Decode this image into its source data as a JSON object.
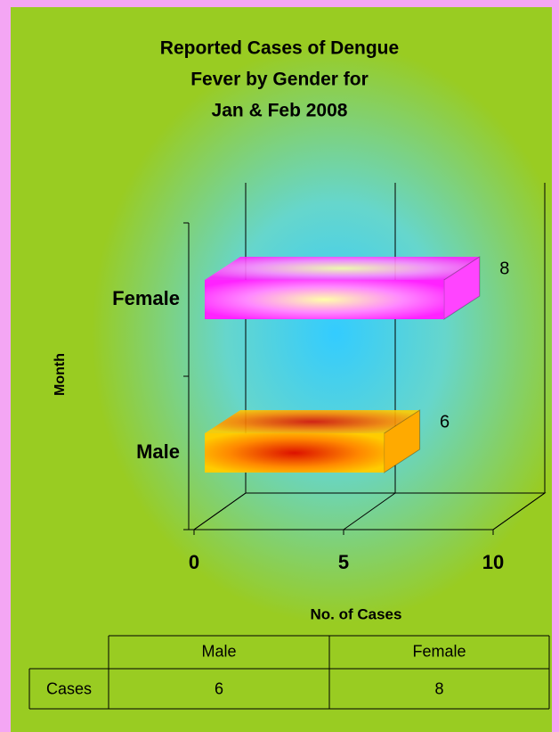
{
  "chart_data": {
    "type": "bar3d",
    "title": [
      "Reported Cases of Dengue",
      "Fever by Gender for",
      "Jan & Feb 2008"
    ],
    "xlabel": "No. of Cases",
    "ylabel": "Month",
    "categories": [
      "Male",
      "Female"
    ],
    "values": [
      6,
      8
    ],
    "colors": [
      "#ffaa00",
      "#ff44ff"
    ],
    "xlim": [
      0,
      10
    ],
    "xticks": [
      0,
      5,
      10
    ],
    "grid": true,
    "data_table": {
      "row_label": "Cases"
    }
  }
}
